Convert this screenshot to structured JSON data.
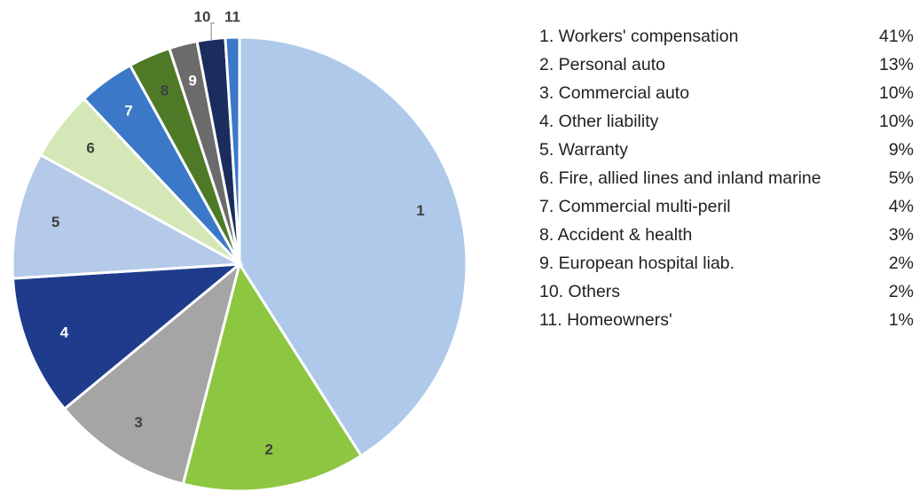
{
  "chart_data": {
    "type": "pie",
    "categories": [
      "1. Workers' compensation",
      "2. Personal auto",
      "3. Commercial auto",
      "4. Other liability",
      "5. Warranty",
      "6. Fire, allied lines and inland marine",
      "7. Commercial multi-peril",
      "8. Accident & health",
      "9. European hospital liab.",
      "10. Others",
      "11. Homeowners'"
    ],
    "slice_labels": [
      "1",
      "2",
      "3",
      "4",
      "5",
      "6",
      "7",
      "8",
      "9",
      "10",
      "11"
    ],
    "values": [
      41,
      13,
      10,
      10,
      9,
      5,
      4,
      3,
      2,
      2,
      1
    ],
    "value_labels": [
      "41%",
      "13%",
      "10%",
      "10%",
      "9%",
      "5%",
      "4%",
      "3%",
      "2%",
      "2%",
      "1%"
    ],
    "colors": [
      "#aec9e9",
      "#8dc641",
      "#a5a5a5",
      "#1f3c8c",
      "#b5c9e8",
      "#d3e7b7",
      "#3b78c8",
      "#4e7a27",
      "#6b6b6b",
      "#1b2d5c",
      "#3b78c8"
    ]
  }
}
